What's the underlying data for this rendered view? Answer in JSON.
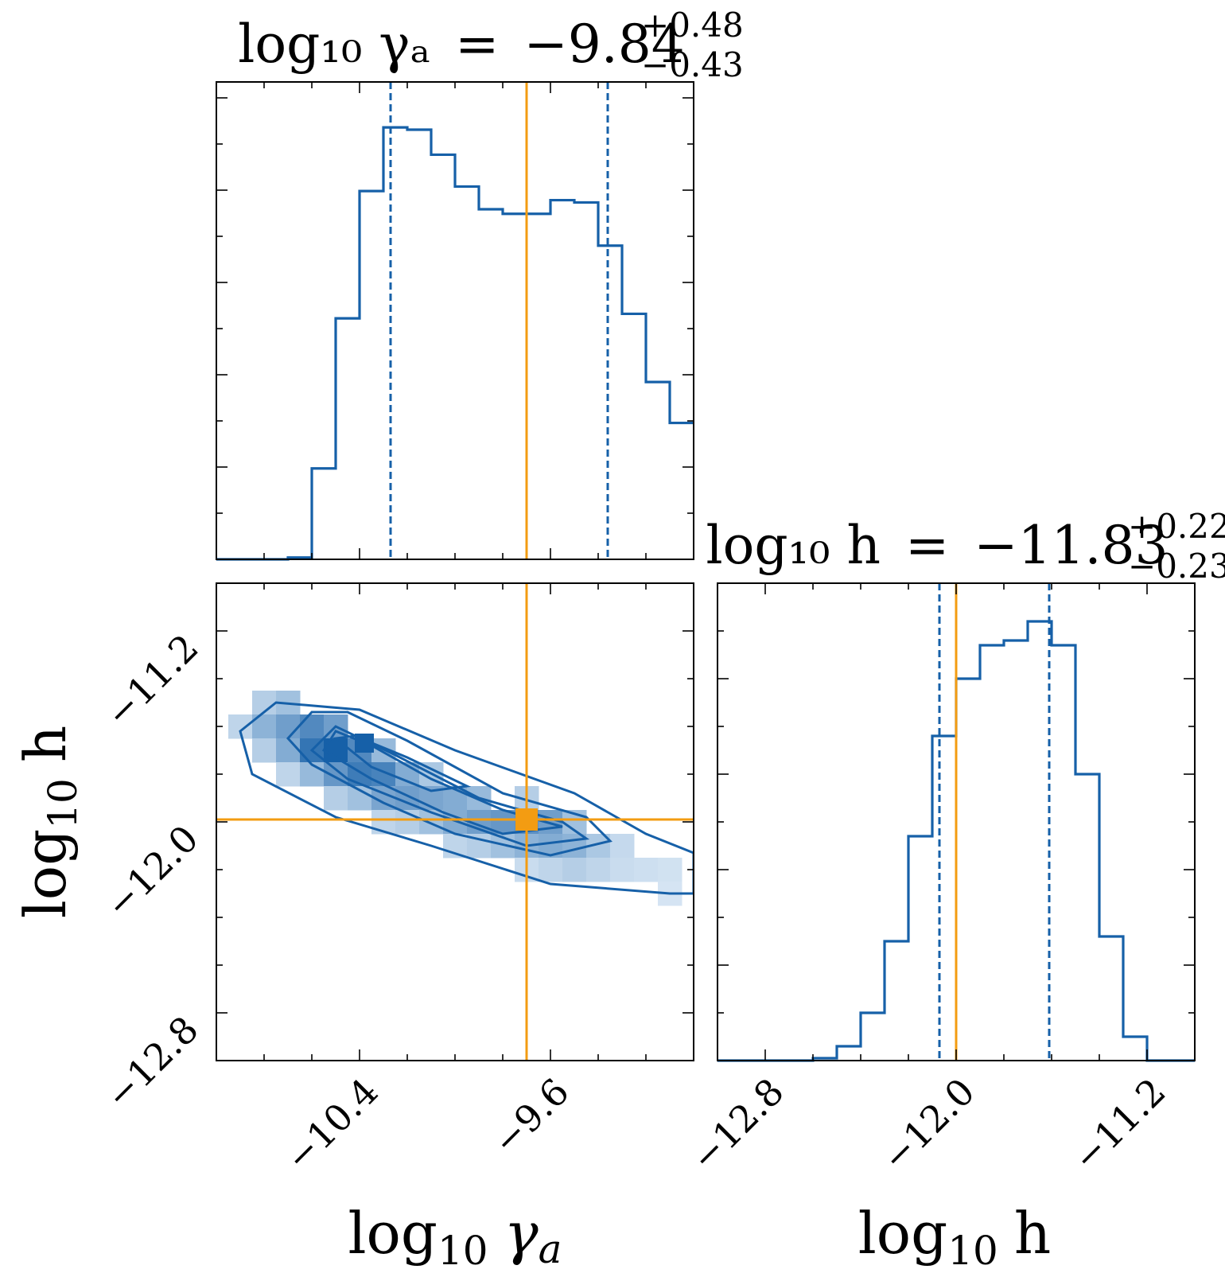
{
  "colors": {
    "posterior": "#1660a8",
    "truth": "#f39c12",
    "density_light": "#ddeaf6",
    "density_dark": "#1660a8"
  },
  "chart_data": [
    {
      "type": "step-histogram",
      "panel": "gamma-marginal",
      "title": {
        "param": "log₁₀ γₐ",
        "equals": "=",
        "median": "−9.84",
        "upper": "+0.48",
        "lower": "−0.43"
      },
      "xlim": [
        -11.0,
        -9.0
      ],
      "x_ticks": [
        -10.4,
        -9.6
      ],
      "x_tick_labels": [
        "−10.4",
        "−9.6"
      ],
      "bin_edges": [
        -11.0,
        -10.9,
        -10.8,
        -10.7,
        -10.6,
        -10.5,
        -10.4,
        -10.3,
        -10.2,
        -10.1,
        -10.0,
        -9.9,
        -9.8,
        -9.7,
        -9.6,
        -9.5,
        -9.4,
        -9.3,
        -9.2,
        -9.1,
        -9.0
      ],
      "counts": [
        0.0,
        0.0,
        0.0,
        0.004,
        0.2,
        0.53,
        0.81,
        0.95,
        0.945,
        0.89,
        0.82,
        0.77,
        0.76,
        0.76,
        0.79,
        0.785,
        0.69,
        0.54,
        0.39,
        0.3
      ],
      "ylim": [
        0,
        1.05
      ],
      "quantiles": [
        -10.27,
        -9.36
      ],
      "truth": -9.7
    },
    {
      "type": "density-contour",
      "panel": "gamma-h-joint",
      "xlim": [
        -11.0,
        -9.0
      ],
      "ylim": [
        -13.0,
        -11.0
      ],
      "x_ticks": [
        -10.4,
        -9.6
      ],
      "x_tick_labels": [
        "−10.4",
        "−9.6"
      ],
      "y_ticks": [
        -11.2,
        -12.0,
        -12.8
      ],
      "y_tick_labels": [
        "−11.2",
        "−12.0",
        "−12.8"
      ],
      "xlabel_param": "log",
      "xlabel_sub": "10",
      "xlabel_sym": "γ",
      "xlabel_symsub": "a",
      "ylabel_param": "log",
      "ylabel_sub": "10",
      "ylabel_sym": "h",
      "contour_levels": [
        [
          [
            -10.6,
            -11.54
          ],
          [
            -10.7,
            -11.65
          ],
          [
            -10.6,
            -11.76
          ],
          [
            -10.3,
            -11.92
          ],
          [
            -10.0,
            -12.05
          ],
          [
            -9.6,
            -12.14
          ],
          [
            -9.35,
            -12.08
          ],
          [
            -9.45,
            -11.98
          ],
          [
            -9.8,
            -11.88
          ],
          [
            -10.2,
            -11.66
          ],
          [
            -10.45,
            -11.54
          ],
          [
            -10.6,
            -11.54
          ]
        ],
        [
          [
            -10.5,
            -11.6
          ],
          [
            -10.6,
            -11.7
          ],
          [
            -10.45,
            -11.82
          ],
          [
            -10.1,
            -11.96
          ],
          [
            -9.7,
            -12.1
          ],
          [
            -9.45,
            -12.07
          ],
          [
            -9.55,
            -12.0
          ],
          [
            -9.9,
            -11.9
          ],
          [
            -10.25,
            -11.72
          ],
          [
            -10.5,
            -11.6
          ]
        ],
        [
          [
            -10.5,
            -11.62
          ],
          [
            -10.55,
            -11.7
          ],
          [
            -10.35,
            -11.82
          ],
          [
            -10.05,
            -11.96
          ],
          [
            -9.8,
            -12.05
          ],
          [
            -9.55,
            -12.02
          ],
          [
            -9.8,
            -11.95
          ],
          [
            -10.1,
            -11.82
          ],
          [
            -10.35,
            -11.68
          ],
          [
            -10.5,
            -11.62
          ]
        ],
        [
          [
            -10.5,
            -11.65
          ],
          [
            -10.35,
            -11.77
          ],
          [
            -10.1,
            -11.87
          ],
          [
            -9.95,
            -11.85
          ],
          [
            -10.2,
            -11.73
          ],
          [
            -10.42,
            -11.64
          ],
          [
            -10.5,
            -11.65
          ]
        ]
      ],
      "outer_contour": [
        [
          -10.75,
          -11.5
        ],
        [
          -10.9,
          -11.62
        ],
        [
          -10.85,
          -11.8
        ],
        [
          -10.5,
          -11.98
        ],
        [
          -10.1,
          -12.1
        ],
        [
          -9.6,
          -12.26
        ],
        [
          -9.1,
          -12.3
        ],
        [
          -9.0,
          -12.3
        ],
        [
          -9.0,
          -12.13
        ],
        [
          -9.2,
          -12.05
        ],
        [
          -9.5,
          -11.88
        ],
        [
          -10.0,
          -11.7
        ],
        [
          -10.4,
          -11.53
        ],
        [
          -10.75,
          -11.5
        ]
      ],
      "density_cells": [
        {
          "x": -10.9,
          "y": -11.6,
          "v": 0.15
        },
        {
          "x": -10.8,
          "y": -11.5,
          "v": 0.2
        },
        {
          "x": -10.8,
          "y": -11.6,
          "v": 0.4
        },
        {
          "x": -10.8,
          "y": -11.7,
          "v": 0.2
        },
        {
          "x": -10.7,
          "y": -11.5,
          "v": 0.3
        },
        {
          "x": -10.7,
          "y": -11.6,
          "v": 0.55
        },
        {
          "x": -10.7,
          "y": -11.7,
          "v": 0.45
        },
        {
          "x": -10.7,
          "y": -11.8,
          "v": 0.15
        },
        {
          "x": -10.6,
          "y": -11.6,
          "v": 0.7
        },
        {
          "x": -10.6,
          "y": -11.7,
          "v": 0.85
        },
        {
          "x": -10.6,
          "y": -11.8,
          "v": 0.35
        },
        {
          "x": -10.5,
          "y": -11.6,
          "v": 0.55
        },
        {
          "x": -10.5,
          "y": -11.7,
          "v": 1.0
        },
        {
          "x": -10.5,
          "y": -11.8,
          "v": 0.6
        },
        {
          "x": -10.5,
          "y": -11.9,
          "v": 0.2
        },
        {
          "x": -10.4,
          "y": -11.7,
          "v": 0.7
        },
        {
          "x": -10.4,
          "y": -11.8,
          "v": 0.8
        },
        {
          "x": -10.4,
          "y": -11.9,
          "v": 0.3
        },
        {
          "x": -10.3,
          "y": -11.7,
          "v": 0.35
        },
        {
          "x": -10.3,
          "y": -11.8,
          "v": 0.75
        },
        {
          "x": -10.3,
          "y": -11.9,
          "v": 0.5
        },
        {
          "x": -10.3,
          "y": -12.0,
          "v": 0.15
        },
        {
          "x": -10.2,
          "y": -11.8,
          "v": 0.45
        },
        {
          "x": -10.2,
          "y": -11.9,
          "v": 0.55
        },
        {
          "x": -10.2,
          "y": -12.0,
          "v": 0.2
        },
        {
          "x": -10.1,
          "y": -11.8,
          "v": 0.25
        },
        {
          "x": -10.1,
          "y": -11.9,
          "v": 0.5
        },
        {
          "x": -10.1,
          "y": -12.0,
          "v": 0.3
        },
        {
          "x": -10.0,
          "y": -11.9,
          "v": 0.45
        },
        {
          "x": -10.0,
          "y": -12.0,
          "v": 0.45
        },
        {
          "x": -10.0,
          "y": -12.1,
          "v": 0.15
        },
        {
          "x": -9.9,
          "y": -11.9,
          "v": 0.35
        },
        {
          "x": -9.9,
          "y": -12.0,
          "v": 0.55
        },
        {
          "x": -9.9,
          "y": -12.1,
          "v": 0.2
        },
        {
          "x": -9.8,
          "y": -12.0,
          "v": 0.6
        },
        {
          "x": -9.8,
          "y": -12.1,
          "v": 0.3
        },
        {
          "x": -9.7,
          "y": -11.9,
          "v": 0.2
        },
        {
          "x": -9.7,
          "y": -12.0,
          "v": 0.65
        },
        {
          "x": -9.7,
          "y": -12.1,
          "v": 0.4
        },
        {
          "x": -9.7,
          "y": -12.2,
          "v": 0.1
        },
        {
          "x": -9.6,
          "y": -12.0,
          "v": 0.55
        },
        {
          "x": -9.6,
          "y": -12.1,
          "v": 0.45
        },
        {
          "x": -9.6,
          "y": -12.2,
          "v": 0.15
        },
        {
          "x": -9.5,
          "y": -12.0,
          "v": 0.3
        },
        {
          "x": -9.5,
          "y": -12.1,
          "v": 0.4
        },
        {
          "x": -9.5,
          "y": -12.2,
          "v": 0.2
        },
        {
          "x": -9.4,
          "y": -12.1,
          "v": 0.25
        },
        {
          "x": -9.4,
          "y": -12.2,
          "v": 0.15
        },
        {
          "x": -9.3,
          "y": -12.1,
          "v": 0.12
        },
        {
          "x": -9.3,
          "y": -12.2,
          "v": 0.1
        },
        {
          "x": -9.2,
          "y": -12.2,
          "v": 0.08
        },
        {
          "x": -9.1,
          "y": -12.2,
          "v": 0.06
        },
        {
          "x": -9.1,
          "y": -12.3,
          "v": 0.04
        }
      ],
      "truth": {
        "x": -9.7,
        "y": -11.99
      }
    },
    {
      "type": "step-histogram",
      "panel": "h-marginal",
      "title": {
        "param": "log₁₀ h",
        "equals": "=",
        "median": "−11.83",
        "upper": "+0.22",
        "lower": "−0.23"
      },
      "xlim": [
        -13.0,
        -11.0
      ],
      "x_ticks": [
        -12.8,
        -12.0,
        -11.2
      ],
      "x_tick_labels": [
        "−12.8",
        "−12.0",
        "−11.2"
      ],
      "bin_edges": [
        -13.0,
        -12.9,
        -12.8,
        -12.7,
        -12.6,
        -12.5,
        -12.4,
        -12.3,
        -12.2,
        -12.1,
        -12.0,
        -11.9,
        -11.8,
        -11.7,
        -11.6,
        -11.5,
        -11.4,
        -11.3,
        -11.2,
        -11.1,
        -11.0
      ],
      "counts": [
        0.0,
        0.0,
        0.0,
        0.0,
        0.005,
        0.03,
        0.1,
        0.25,
        0.47,
        0.68,
        0.8,
        0.87,
        0.88,
        0.92,
        0.87,
        0.6,
        0.26,
        0.05,
        0.0,
        0.0
      ],
      "ylim": [
        0,
        1.0
      ],
      "quantiles": [
        -12.07,
        -11.61
      ],
      "truth": -12.0,
      "xlabel_param": "log",
      "xlabel_sub": "10",
      "xlabel_sym": "h"
    }
  ]
}
